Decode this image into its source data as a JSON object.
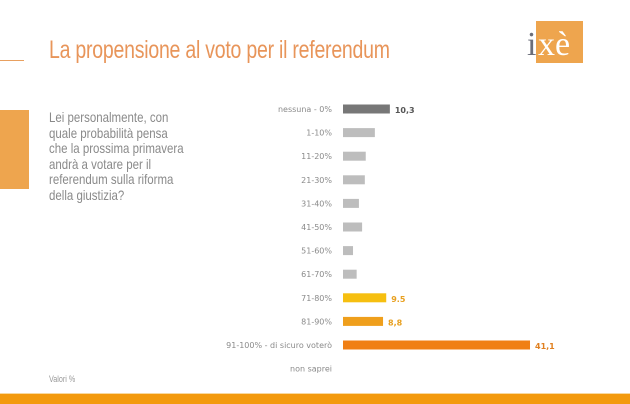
{
  "header": {
    "title": "La propensione al voto per il referendum",
    "logo_text": "ixè"
  },
  "question": "Lei personalmente, con quale probabilità pensa che la prossima primavera andrà a votare per il referendum sulla riforma della giustizia?",
  "note": "Valori %",
  "colors": {
    "accent": "#e8955a",
    "block": "#eea54e",
    "footer": "#f39a0e",
    "dark_gray": "#777777",
    "light_gray": "#bdbdbd",
    "yellow": "#f6bf10",
    "amber": "#ef9f1c",
    "orange": "#f07f14"
  },
  "chart_data": {
    "type": "bar",
    "orientation": "horizontal",
    "title": "La propensione al voto per il referendum",
    "xlabel": "",
    "ylabel": "",
    "units": "%",
    "categories": [
      "nessuna - 0%",
      "1-10%",
      "11-20%",
      "21-30%",
      "31-40%",
      "41-50%",
      "51-60%",
      "61-70%",
      "71-80%",
      "81-90%",
      "91-100% - di sicuro voterò",
      "non saprei"
    ],
    "values": [
      10.3,
      7.0,
      5.0,
      4.8,
      3.5,
      4.2,
      2.2,
      3.0,
      9.5,
      8.8,
      41.1,
      0
    ],
    "data_labels": [
      "10,3",
      "",
      "",
      "",
      "",
      "",
      "",
      "",
      "9.5",
      "8,8",
      "41,1",
      ""
    ],
    "bar_colors": [
      "#777777",
      "#bdbdbd",
      "#bdbdbd",
      "#bdbdbd",
      "#bdbdbd",
      "#bdbdbd",
      "#bdbdbd",
      "#bdbdbd",
      "#f6bf10",
      "#ef9f1c",
      "#f07f14",
      "#bdbdbd"
    ],
    "label_colors": [
      "#555555",
      "",
      "",
      "",
      "",
      "",
      "",
      "",
      "#e8a020",
      "#e8a020",
      "#e08020",
      ""
    ],
    "xlim": [
      0,
      45
    ],
    "grid": false,
    "legend": "none"
  }
}
